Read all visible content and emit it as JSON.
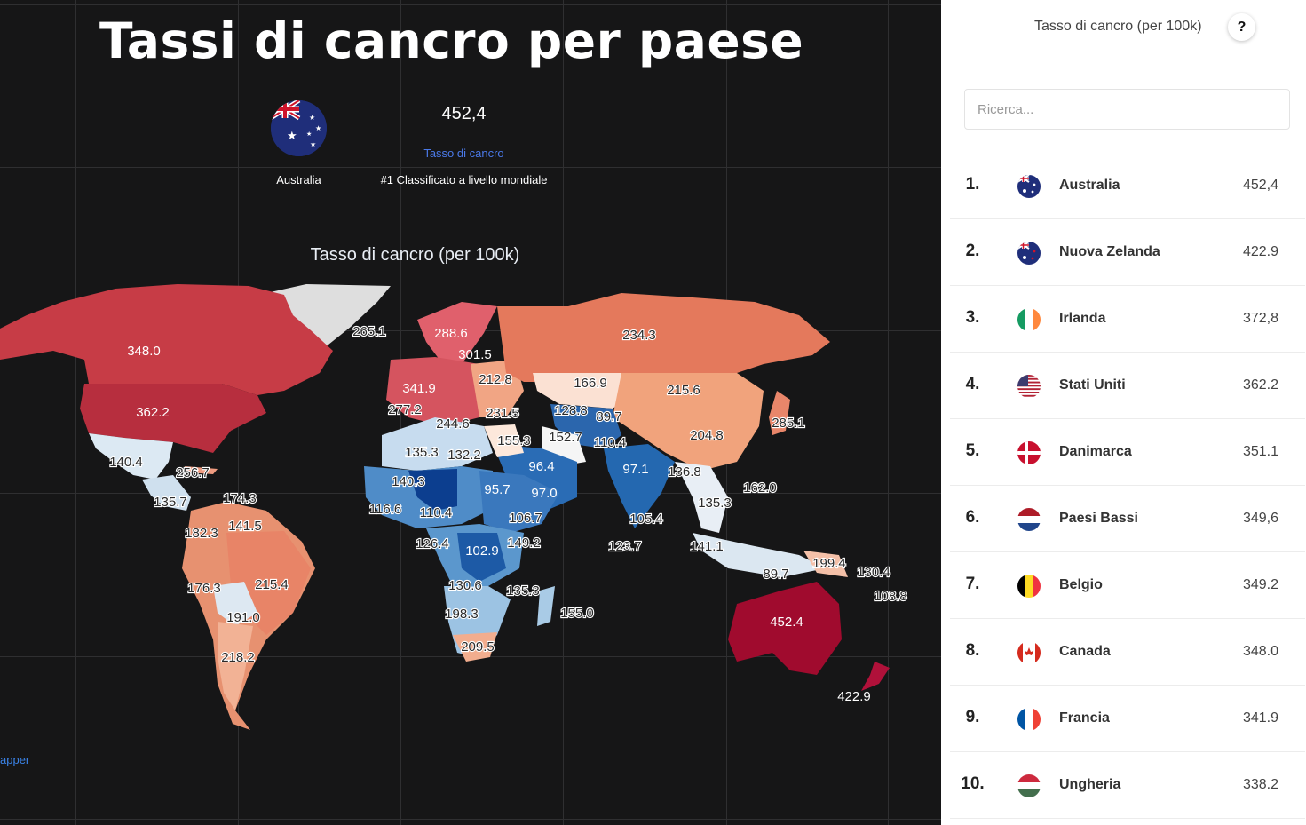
{
  "header": {
    "title": "Tassi di cancro per paese",
    "highlight": {
      "flag_icon": "australia-flag-icon",
      "country": "Australia",
      "value": "452,4",
      "metric": "Tasso di cancro",
      "rank_text": "#1 Classificato a livello mondiale"
    }
  },
  "map": {
    "title": "Tasso di cancro (per 100k)",
    "credit": "apper",
    "color_scale": {
      "low": "#08306b",
      "mid": "#f7f7f7",
      "high": "#a50f2d"
    },
    "labels": [
      {
        "country": "Canada",
        "text": "348.0",
        "style": "light"
      },
      {
        "country": "United States",
        "text": "362.2",
        "style": "light"
      },
      {
        "country": "Greenland",
        "text": "265.1",
        "style": "dark"
      },
      {
        "country": "Mexico",
        "text": "140.4",
        "style": "dark"
      },
      {
        "country": "Cuba",
        "text": "256.7",
        "style": "dark"
      },
      {
        "country": "Dominican Republic",
        "text": "174.3",
        "style": "dark"
      },
      {
        "country": "Guatemala",
        "text": "135.7",
        "style": "dark"
      },
      {
        "country": "Colombia",
        "text": "182.3",
        "style": "dark"
      },
      {
        "country": "Venezuela",
        "text": "141.5",
        "style": "dark"
      },
      {
        "country": "Peru",
        "text": "176.3",
        "style": "dark"
      },
      {
        "country": "Brazil",
        "text": "215.4",
        "style": "dark"
      },
      {
        "country": "Bolivia",
        "text": "191.0",
        "style": "dark"
      },
      {
        "country": "Argentina",
        "text": "218.2",
        "style": "dark"
      },
      {
        "country": "Norway",
        "text": "288.6",
        "style": "light"
      },
      {
        "country": "Sweden",
        "text": "301.5",
        "style": "light"
      },
      {
        "country": "France",
        "text": "341.9",
        "style": "light"
      },
      {
        "country": "Poland",
        "text": "212.8",
        "style": "dark"
      },
      {
        "country": "Spain",
        "text": "277.2",
        "style": "dark"
      },
      {
        "country": "Italy",
        "text": "244.6",
        "style": "dark"
      },
      {
        "country": "Turkey",
        "text": "231.5",
        "style": "dark"
      },
      {
        "country": "Russia",
        "text": "234.3",
        "style": "dark"
      },
      {
        "country": "Kazakhstan",
        "text": "166.9",
        "style": "dark"
      },
      {
        "country": "Mongolia",
        "text": "215.6",
        "style": "dark"
      },
      {
        "country": "Japan",
        "text": "285.1",
        "style": "dark"
      },
      {
        "country": "China",
        "text": "204.8",
        "style": "dark"
      },
      {
        "country": "Uzbekistan",
        "text": "128.8",
        "style": "dark"
      },
      {
        "country": "Tajikistan",
        "text": "89.7",
        "style": "dark"
      },
      {
        "country": "Iran",
        "text": "152.7",
        "style": "dark"
      },
      {
        "country": "Pakistan",
        "text": "110.4",
        "style": "dark"
      },
      {
        "country": "India",
        "text": "97.1",
        "style": "light"
      },
      {
        "country": "Myanmar",
        "text": "136.8",
        "style": "dark"
      },
      {
        "country": "Algeria",
        "text": "135.3",
        "style": "dark"
      },
      {
        "country": "Libya",
        "text": "132.2",
        "style": "dark"
      },
      {
        "country": "Egypt",
        "text": "155.3",
        "style": "dark"
      },
      {
        "country": "Saudi Arabia",
        "text": "96.4",
        "style": "light"
      },
      {
        "country": "Mali",
        "text": "140.3",
        "style": "dark"
      },
      {
        "country": "Sudan",
        "text": "95.7",
        "style": "light"
      },
      {
        "country": "Yemen",
        "text": "97.0",
        "style": "light"
      },
      {
        "country": "Guinea",
        "text": "116.6",
        "style": "dark"
      },
      {
        "country": "Nigeria",
        "text": "110.4",
        "style": "dark"
      },
      {
        "country": "Ethiopia",
        "text": "106.7",
        "style": "dark"
      },
      {
        "country": "Sri Lanka",
        "text": "105.4",
        "style": "dark"
      },
      {
        "country": "Philippines",
        "text": "162.0",
        "style": "dark"
      },
      {
        "country": "Thailand",
        "text": "135.3",
        "style": "dark"
      },
      {
        "country": "Gabon",
        "text": "126.4",
        "style": "dark"
      },
      {
        "country": "DR Congo",
        "text": "102.9",
        "style": "light"
      },
      {
        "country": "Kenya",
        "text": "149.2",
        "style": "dark"
      },
      {
        "country": "Maldives",
        "text": "123.7",
        "style": "dark"
      },
      {
        "country": "Malaysia",
        "text": "141.1",
        "style": "dark"
      },
      {
        "country": "Papua New Guinea",
        "text": "199.4",
        "style": "dark"
      },
      {
        "country": "Solomon Islands",
        "text": "130.4",
        "style": "dark"
      },
      {
        "country": "Indonesia",
        "text": "89.7",
        "style": "dark"
      },
      {
        "country": "Vanuatu",
        "text": "108.8",
        "style": "dark"
      },
      {
        "country": "Angola",
        "text": "130.6",
        "style": "dark"
      },
      {
        "country": "Mozambique",
        "text": "135.3",
        "style": "dark"
      },
      {
        "country": "Botswana",
        "text": "198.3",
        "style": "dark"
      },
      {
        "country": "Madagascar",
        "text": "155.0",
        "style": "dark"
      },
      {
        "country": "South Africa",
        "text": "209.5",
        "style": "dark"
      },
      {
        "country": "Australia",
        "text": "452.4",
        "style": "light"
      },
      {
        "country": "New Zealand",
        "text": "422.9",
        "style": "light"
      }
    ]
  },
  "sidebar": {
    "title": "Tasso di cancro (per 100k)",
    "help_label": "?",
    "search": {
      "placeholder": "Ricerca..."
    },
    "items": [
      {
        "rank": "1.",
        "country": "Australia",
        "value": "452,4",
        "flag": "australia-flag-icon"
      },
      {
        "rank": "2.",
        "country": "Nuova Zelanda",
        "value": "422.9",
        "flag": "new-zealand-flag-icon"
      },
      {
        "rank": "3.",
        "country": "Irlanda",
        "value": "372,8",
        "flag": "ireland-flag-icon"
      },
      {
        "rank": "4.",
        "country": "Stati Uniti",
        "value": "362.2",
        "flag": "usa-flag-icon"
      },
      {
        "rank": "5.",
        "country": "Danimarca",
        "value": "351.1",
        "flag": "denmark-flag-icon"
      },
      {
        "rank": "6.",
        "country": "Paesi Bassi",
        "value": "349,6",
        "flag": "netherlands-flag-icon"
      },
      {
        "rank": "7.",
        "country": "Belgio",
        "value": "349.2",
        "flag": "belgium-flag-icon"
      },
      {
        "rank": "8.",
        "country": "Canada",
        "value": "348.0",
        "flag": "canada-flag-icon"
      },
      {
        "rank": "9.",
        "country": "Francia",
        "value": "341.9",
        "flag": "france-flag-icon"
      },
      {
        "rank": "10.",
        "country": "Ungheria",
        "value": "338.2",
        "flag": "hungary-flag-icon"
      }
    ]
  }
}
